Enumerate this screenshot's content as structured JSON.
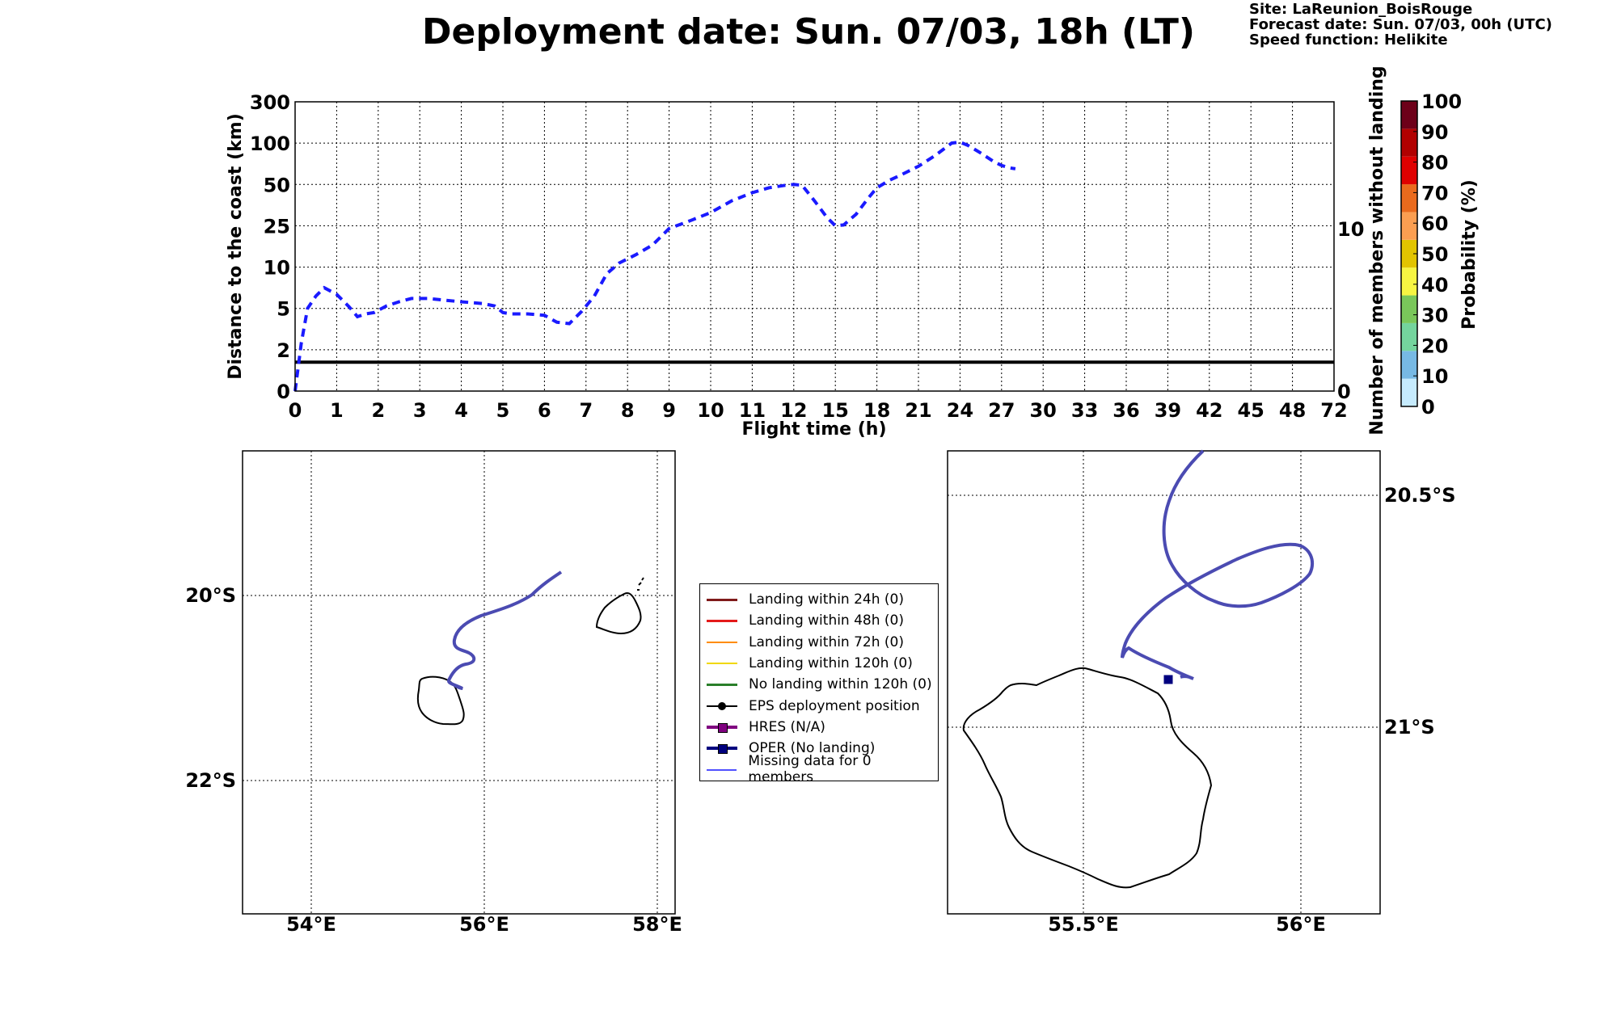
{
  "title": "Deployment date: Sun. 07/03, 18h (LT)",
  "meta": {
    "site": "Site: LaReunion_BoisRouge",
    "forecast": "Forecast date: Sun. 07/03, 00h (UTC)",
    "speed": "Speed function: Helikite"
  },
  "chart_data": [
    {
      "type": "line",
      "xlabel": "Flight time (h)",
      "ylabel": "Distance to the coast (km)",
      "ylabel_right": "Number of members without landing",
      "x_ticks": [
        "0",
        "1",
        "2",
        "3",
        "4",
        "5",
        "6",
        "7",
        "8",
        "9",
        "10",
        "11",
        "12",
        "15",
        "18",
        "21",
        "24",
        "27",
        "30",
        "33",
        "36",
        "39",
        "42",
        "45",
        "48",
        "72"
      ],
      "y_ticks": [
        "0",
        "2",
        "5",
        "10",
        "25",
        "50",
        "100",
        "300"
      ],
      "y_ticks_right": [
        "0",
        "10"
      ],
      "series": [
        {
          "color": "#1a1aff",
          "style": "dashed",
          "x": [
            0,
            0.15,
            0.3,
            0.5,
            0.7,
            1.0,
            1.3,
            1.5,
            1.7,
            1.9,
            2.2,
            2.5,
            2.8,
            3.2,
            3.6,
            4.0,
            4.5,
            4.8,
            5.0,
            5.2,
            5.6,
            6.0,
            6.3,
            6.6,
            6.9,
            7.2,
            7.5,
            7.8,
            8.2,
            8.6,
            9.0,
            9.5,
            10.0,
            10.5,
            11.0,
            11.4,
            11.8,
            12,
            12.6,
            13.5,
            14.4,
            15,
            15.6,
            16.5,
            17.4,
            18,
            18.9,
            19.8,
            21,
            22.2,
            23.4,
            24,
            24.6,
            25.5,
            26.4,
            27,
            27.6,
            28
          ],
          "y": [
            0,
            2.5,
            5,
            6.5,
            7.5,
            6.7,
            5.2,
            4.4,
            4.6,
            4.7,
            5.3,
            5.8,
            6.2,
            6.2,
            6.0,
            5.8,
            5.6,
            5.3,
            4.7,
            4.6,
            4.6,
            4.5,
            4.0,
            3.9,
            4.8,
            6.5,
            9.2,
            11.5,
            14.5,
            18,
            24,
            28,
            33,
            40,
            45,
            48,
            49.5,
            50,
            49.5,
            40,
            30,
            25,
            25.5,
            32,
            42,
            48,
            55,
            62,
            72,
            85,
            100,
            105,
            97,
            88,
            78,
            73,
            70,
            69
          ]
        }
      ],
      "reference_line": {
        "y": 1.4,
        "color": "#000000"
      }
    },
    {
      "type": "map",
      "lon_ticks": [
        "54°E",
        "56°E",
        "58°E"
      ],
      "lat_ticks": [
        "20°S",
        "22°S"
      ]
    },
    {
      "type": "map",
      "lon_ticks": [
        "55.5°E",
        "56°E"
      ],
      "lat_ticks": [
        "20.5°S",
        "21°S"
      ]
    }
  ],
  "colorbar": {
    "label": "Probability (%)",
    "ticks": [
      "0",
      "10",
      "20",
      "30",
      "40",
      "50",
      "60",
      "70",
      "80",
      "90",
      "100"
    ],
    "colors": [
      "#c6ebfd",
      "#77b9e4",
      "#74d49d",
      "#7ac75a",
      "#f7f542",
      "#e2c400",
      "#fb9e51",
      "#ea6a1d",
      "#df0000",
      "#b10000",
      "#6d0019"
    ]
  },
  "legend": [
    {
      "label": "Landing within 24h (0)",
      "color": "#7f1a1a",
      "kind": "line"
    },
    {
      "label": "Landing within 48h (0)",
      "color": "#e41a1a",
      "kind": "line"
    },
    {
      "label": "Landing within 72h (0)",
      "color": "#ff8c00",
      "kind": "line"
    },
    {
      "label": "Landing within 120h (0)",
      "color": "#f0d800",
      "kind": "line"
    },
    {
      "label": "No landing within 120h (0)",
      "color": "#2a7f2a",
      "kind": "line"
    },
    {
      "label": "EPS deployment position",
      "color": "#000000",
      "kind": "dot"
    },
    {
      "label": "HRES (N/A)",
      "color": "#800080",
      "kind": "square"
    },
    {
      "label": "OPER (No landing)",
      "color": "#00007f",
      "kind": "square"
    },
    {
      "label": "Missing data for 0 members",
      "color": "#5050ff",
      "kind": "thin"
    }
  ]
}
